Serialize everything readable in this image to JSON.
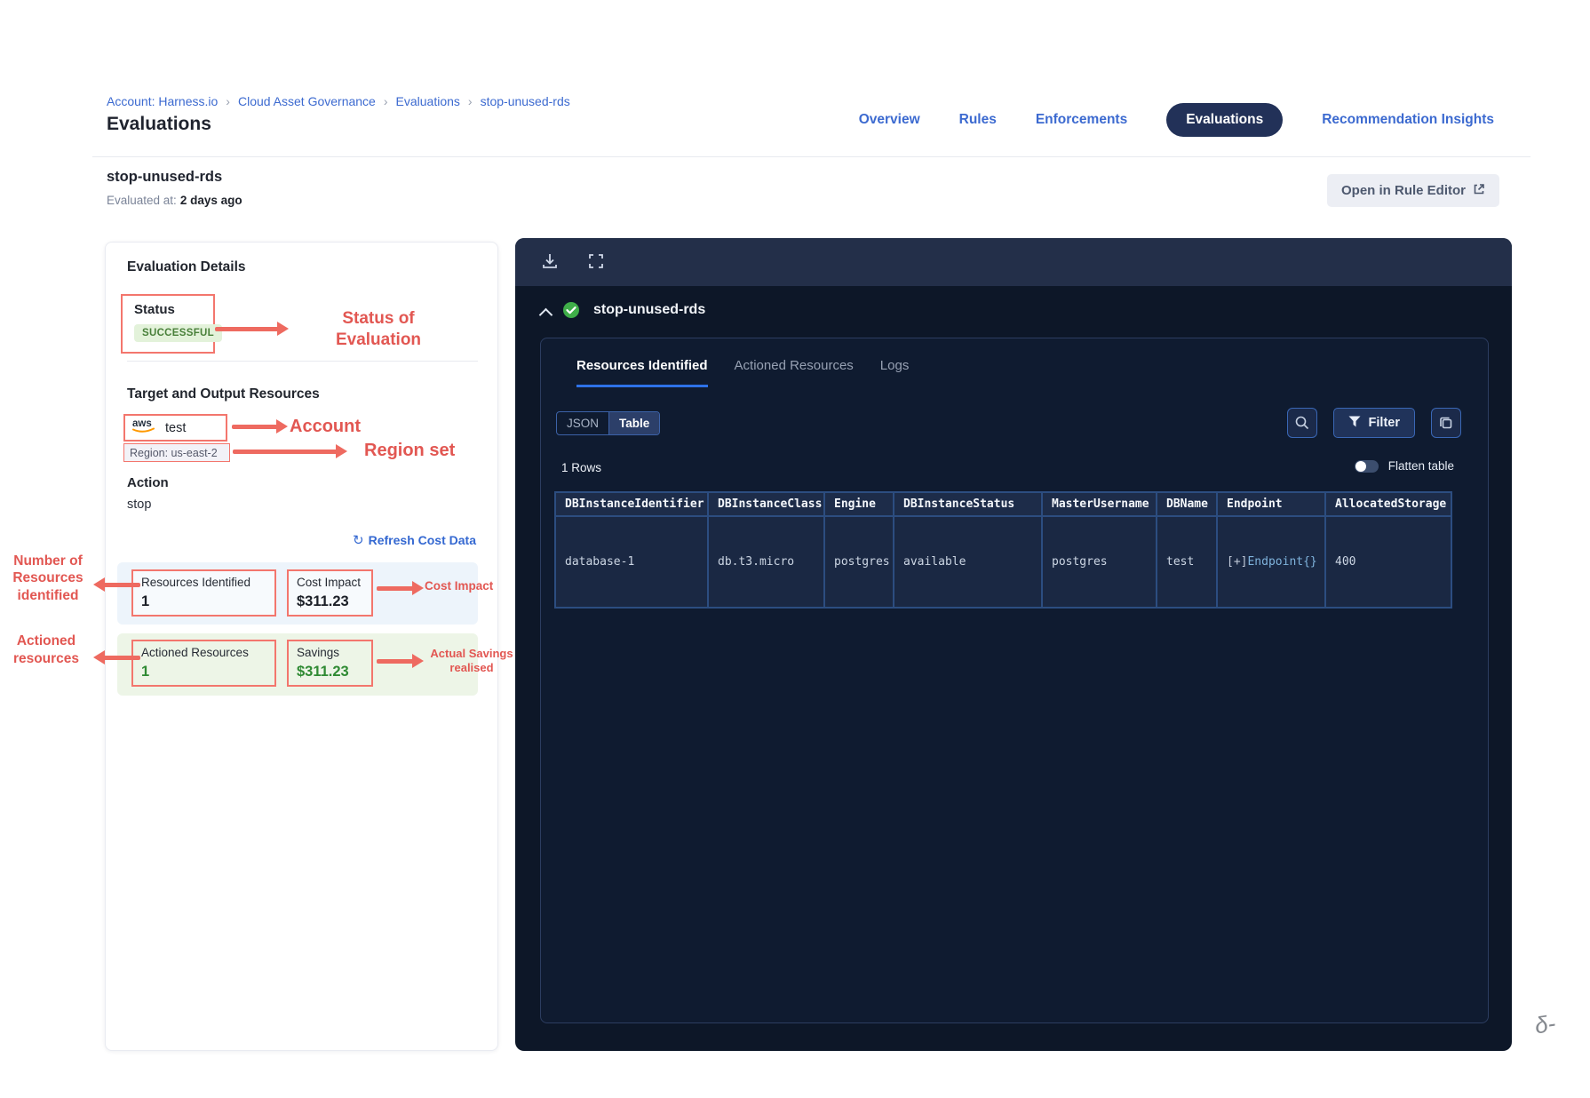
{
  "breadcrumb": {
    "items": [
      "Account: Harness.io",
      "Cloud Asset Governance",
      "Evaluations",
      "stop-unused-rds"
    ],
    "separator": "›"
  },
  "page_title": "Evaluations",
  "nav": {
    "tabs": [
      {
        "label": "Overview"
      },
      {
        "label": "Rules"
      },
      {
        "label": "Enforcements"
      },
      {
        "label": "Evaluations"
      },
      {
        "label": "Recommendation Insights"
      }
    ],
    "active_tab": "Evaluations"
  },
  "subheader": {
    "title": "stop-unused-rds",
    "evaluated_label": "Evaluated at:",
    "evaluated_value": "2 days ago",
    "open_rule_editor_label": "Open in Rule Editor"
  },
  "details": {
    "heading": "Evaluation Details",
    "status_label": "Status",
    "status_value": "SUCCESSFUL",
    "target_heading": "Target and Output Resources",
    "aws_logo": "aws",
    "account_name": "test",
    "region_label": "Region: us-east-2",
    "action_label": "Action",
    "action_value": "stop",
    "refresh_icon": "↻",
    "refresh_link": "Refresh Cost Data",
    "cards": {
      "resources_identified": {
        "label": "Resources Identified",
        "value": "1"
      },
      "cost_impact": {
        "label": "Cost Impact",
        "value": "$311.23"
      },
      "actioned_resources": {
        "label": "Actioned Resources",
        "value": "1"
      },
      "savings": {
        "label": "Savings",
        "value": "$311.23"
      }
    }
  },
  "annotations": {
    "status": "Status of Evaluation",
    "account": "Account",
    "region": "Region set",
    "resources_identified": "Number of Resources identified",
    "cost_impact": "Cost Impact",
    "actioned_resources": "Actioned resources",
    "savings": "Actual Savings realised"
  },
  "viewer": {
    "title": "stop-unused-rds",
    "tabs": [
      {
        "label": "Resources Identified"
      },
      {
        "label": "Actioned Resources"
      },
      {
        "label": "Logs"
      }
    ],
    "active_tab": "Resources Identified",
    "view_toggle": {
      "json": "JSON",
      "table": "Table",
      "selected": "Table"
    },
    "filter_label": "Filter",
    "rows_count": "1 Rows",
    "flatten_label": "Flatten table",
    "table": {
      "columns": [
        "DBInstanceIdentifier",
        "DBInstanceClass",
        "Engine",
        "DBInstanceStatus",
        "MasterUsername",
        "DBName",
        "Endpoint",
        "AllocatedStorage"
      ],
      "rows": [
        [
          "database-1",
          "db.t3.micro",
          "postgres",
          "available",
          "postgres",
          "test",
          {
            "muted": "[+]",
            "accent": "Endpoint{}"
          },
          "400"
        ]
      ]
    }
  },
  "misc": {
    "signature_glyph": "δ-"
  },
  "colors": {
    "annotation_red": "#e25752",
    "arrow_red": "#ee6a60",
    "success_badge_bg": "#e3f2da",
    "success_badge_text": "#49803a",
    "savings_green": "#2f8a33",
    "accent_blue": "#3c6ad0",
    "nav_pill_navy": "#223158",
    "panel_body": "#0d1728",
    "panel_toolbar": "#232f49",
    "table_border_blue": "#2c4d80",
    "aws_orange": "#ff9900"
  }
}
